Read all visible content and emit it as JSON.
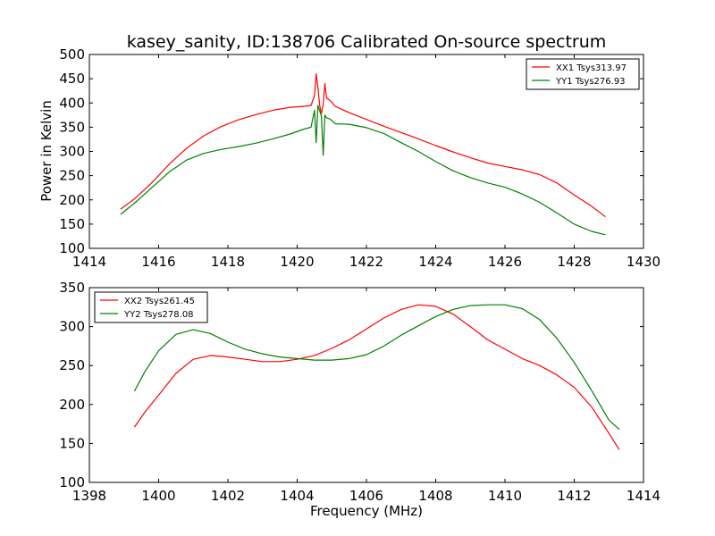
{
  "figure": {
    "title": "kasey_sanity, ID:138706 Calibrated On-source spectrum",
    "background": "#ffffff"
  },
  "chart_data": [
    {
      "type": "line",
      "xlabel": "",
      "ylabel": "Power in Kelvin",
      "xlim": [
        1414,
        1430
      ],
      "ylim": [
        100,
        500
      ],
      "xticks": [
        1414,
        1416,
        1418,
        1420,
        1422,
        1424,
        1426,
        1428,
        1430
      ],
      "yticks": [
        100,
        150,
        200,
        250,
        300,
        350,
        400,
        450,
        500
      ],
      "legend_position": "top-right",
      "grid": false,
      "series": [
        {
          "name": "XX1 Tsys313.97",
          "color": "#ff0000",
          "points": [
            [
              1414.9,
              181
            ],
            [
              1415.3,
              202
            ],
            [
              1415.8,
              235
            ],
            [
              1416.3,
              273
            ],
            [
              1416.8,
              306
            ],
            [
              1417.3,
              332
            ],
            [
              1417.8,
              351
            ],
            [
              1418.3,
              365
            ],
            [
              1418.8,
              376
            ],
            [
              1419.3,
              385
            ],
            [
              1419.8,
              391
            ],
            [
              1420.2,
              393
            ],
            [
              1420.4,
              395
            ],
            [
              1420.5,
              415
            ],
            [
              1420.55,
              460
            ],
            [
              1420.6,
              432
            ],
            [
              1420.65,
              395
            ],
            [
              1420.7,
              378
            ],
            [
              1420.75,
              398
            ],
            [
              1420.8,
              440
            ],
            [
              1420.85,
              410
            ],
            [
              1420.95,
              405
            ],
            [
              1421.1,
              393
            ],
            [
              1421.5,
              380
            ],
            [
              1422,
              366
            ],
            [
              1422.5,
              352
            ],
            [
              1423,
              339
            ],
            [
              1423.5,
              326
            ],
            [
              1424,
              312
            ],
            [
              1424.5,
              299
            ],
            [
              1425,
              287
            ],
            [
              1425.5,
              276
            ],
            [
              1426,
              269
            ],
            [
              1426.5,
              262
            ],
            [
              1427,
              252
            ],
            [
              1427.5,
              235
            ],
            [
              1428,
              210
            ],
            [
              1428.5,
              187
            ],
            [
              1428.9,
              165
            ]
          ]
        },
        {
          "name": "YY1 Tsys276.93",
          "color": "#008000",
          "points": [
            [
              1414.9,
              170
            ],
            [
              1415.3,
              193
            ],
            [
              1415.8,
              225
            ],
            [
              1416.3,
              257
            ],
            [
              1416.8,
              282
            ],
            [
              1417.3,
              296
            ],
            [
              1417.8,
              304
            ],
            [
              1418.3,
              310
            ],
            [
              1418.8,
              317
            ],
            [
              1419.3,
              326
            ],
            [
              1419.8,
              336
            ],
            [
              1420.2,
              346
            ],
            [
              1420.4,
              350
            ],
            [
              1420.5,
              385
            ],
            [
              1420.55,
              318
            ],
            [
              1420.6,
              395
            ],
            [
              1420.7,
              373
            ],
            [
              1420.75,
              292
            ],
            [
              1420.8,
              375
            ],
            [
              1420.85,
              369
            ],
            [
              1420.95,
              367
            ],
            [
              1421.1,
              357
            ],
            [
              1421.5,
              356
            ],
            [
              1422,
              349
            ],
            [
              1422.5,
              337
            ],
            [
              1423,
              318
            ],
            [
              1423.5,
              300
            ],
            [
              1424,
              279
            ],
            [
              1424.5,
              260
            ],
            [
              1425,
              246
            ],
            [
              1425.5,
              235
            ],
            [
              1426,
              226
            ],
            [
              1426.5,
              212
            ],
            [
              1427,
              195
            ],
            [
              1427.5,
              173
            ],
            [
              1428,
              150
            ],
            [
              1428.5,
              135
            ],
            [
              1428.9,
              128
            ]
          ]
        }
      ]
    },
    {
      "type": "line",
      "xlabel": "Frequency (MHz)",
      "ylabel": "",
      "xlim": [
        1398,
        1414
      ],
      "ylim": [
        100,
        350
      ],
      "xticks": [
        1398,
        1400,
        1402,
        1404,
        1406,
        1408,
        1410,
        1412,
        1414
      ],
      "yticks": [
        100,
        150,
        200,
        250,
        300,
        350
      ],
      "legend_position": "top-left",
      "grid": false,
      "series": [
        {
          "name": "XX2 Tsys261.45",
          "color": "#ff0000",
          "points": [
            [
              1399.3,
              171
            ],
            [
              1399.6,
              190
            ],
            [
              1400,
              212
            ],
            [
              1400.5,
              240
            ],
            [
              1401,
              258
            ],
            [
              1401.5,
              263
            ],
            [
              1402,
              261
            ],
            [
              1402.5,
              258
            ],
            [
              1403,
              255
            ],
            [
              1403.5,
              255
            ],
            [
              1404,
              258
            ],
            [
              1404.5,
              263
            ],
            [
              1405,
              272
            ],
            [
              1405.5,
              283
            ],
            [
              1406,
              297
            ],
            [
              1406.5,
              311
            ],
            [
              1407,
              322
            ],
            [
              1407.5,
              328
            ],
            [
              1408,
              326
            ],
            [
              1408.5,
              316
            ],
            [
              1409,
              300
            ],
            [
              1409.5,
              283
            ],
            [
              1410,
              271
            ],
            [
              1410.5,
              259
            ],
            [
              1411,
              250
            ],
            [
              1411.5,
              238
            ],
            [
              1412,
              222
            ],
            [
              1412.5,
              197
            ],
            [
              1413,
              163
            ],
            [
              1413.3,
              142
            ]
          ]
        },
        {
          "name": "YY2 Tsys278.08",
          "color": "#008000",
          "points": [
            [
              1399.3,
              217
            ],
            [
              1399.6,
              242
            ],
            [
              1400,
              269
            ],
            [
              1400.5,
              290
            ],
            [
              1401,
              296
            ],
            [
              1401.5,
              291
            ],
            [
              1402,
              280
            ],
            [
              1402.5,
              271
            ],
            [
              1403,
              265
            ],
            [
              1403.5,
              261
            ],
            [
              1404,
              259
            ],
            [
              1404.5,
              257
            ],
            [
              1405,
              257
            ],
            [
              1405.5,
              259
            ],
            [
              1406,
              264
            ],
            [
              1406.5,
              275
            ],
            [
              1407,
              289
            ],
            [
              1407.5,
              301
            ],
            [
              1408,
              313
            ],
            [
              1408.5,
              322
            ],
            [
              1409,
              327
            ],
            [
              1409.5,
              328
            ],
            [
              1410,
              328
            ],
            [
              1410.5,
              323
            ],
            [
              1411,
              309
            ],
            [
              1411.5,
              285
            ],
            [
              1412,
              254
            ],
            [
              1412.5,
              218
            ],
            [
              1413,
              180
            ],
            [
              1413.3,
              168
            ]
          ]
        }
      ]
    }
  ]
}
